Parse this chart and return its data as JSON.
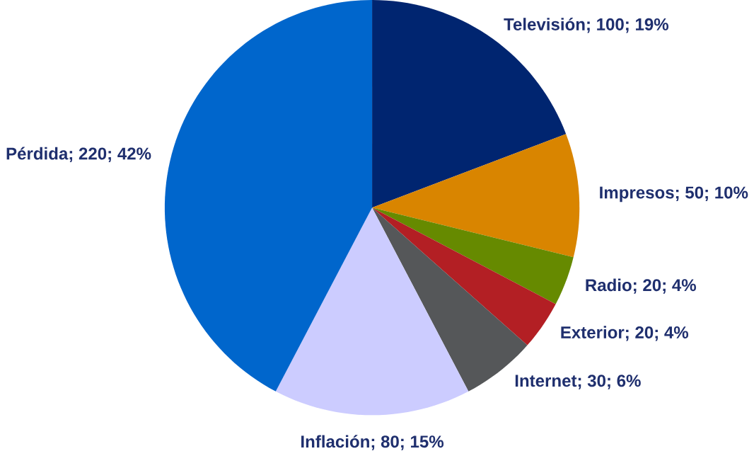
{
  "chart_data": {
    "type": "pie",
    "categories": [
      "Televisión",
      "Impresos",
      "Radio",
      "Exterior",
      "Internet",
      "Inflación",
      "Pérdida"
    ],
    "values": [
      100,
      50,
      20,
      20,
      30,
      80,
      220
    ],
    "value_labels": [
      "; 100; 19%",
      "; 50; 10%",
      "; 20; 4%",
      "; 20; 4%",
      "; 30; 6%",
      "; 80; 15%",
      "; 220; 42%"
    ],
    "colors": [
      "#002570",
      "#d98500",
      "#668a00",
      "#b31f24",
      "#555759",
      "#ccccff",
      "#0066cc"
    ]
  }
}
